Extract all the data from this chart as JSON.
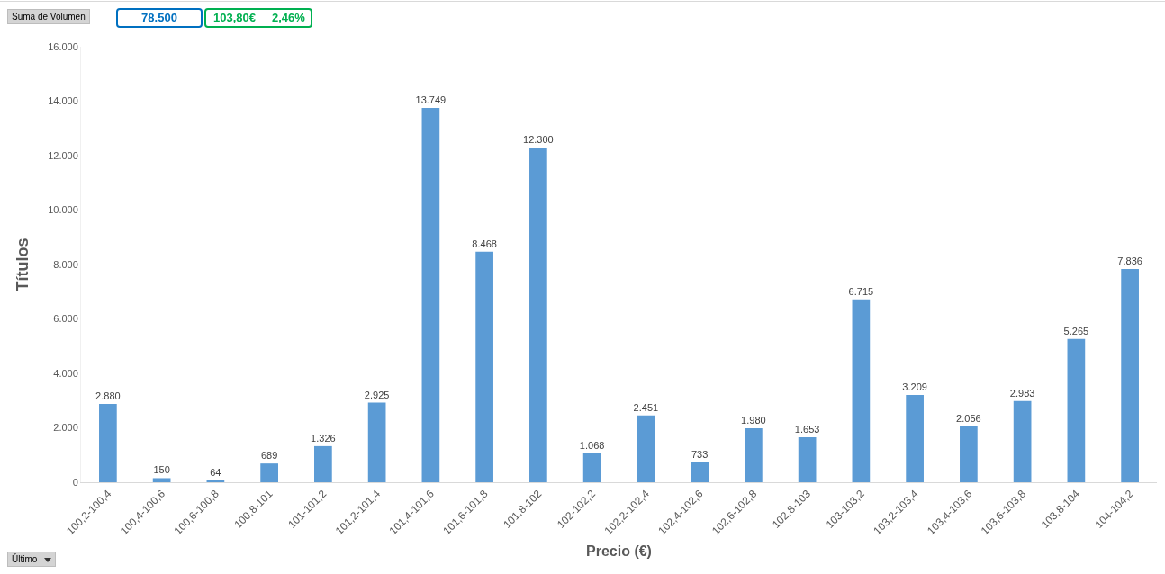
{
  "chart_data": {
    "type": "bar",
    "xlabel": "Precio (€)",
    "ylabel": "Títulos",
    "categories": [
      "100,2-100,4",
      "100,4-100,6",
      "100,6-100,8",
      "100,8-101",
      "101-101,2",
      "101,2-101,4",
      "101,4-101,6",
      "101,6-101,8",
      "101,8-102",
      "102-102,2",
      "102,2-102,4",
      "102,4-102,6",
      "102,6-102,8",
      "102,8-103",
      "103-103,2",
      "103,2-103,4",
      "103,4-103,6",
      "103,6-103,8",
      "103,8-104",
      "104-104,2"
    ],
    "values": [
      2880,
      150,
      64,
      689,
      1326,
      2925,
      13749,
      8468,
      12300,
      1068,
      2451,
      733,
      1980,
      1653,
      6715,
      3209,
      2056,
      2983,
      5265,
      7836
    ],
    "value_labels": [
      "2.880",
      "150",
      "64",
      "689",
      "1.326",
      "2.925",
      "13.749",
      "8.468",
      "12.300",
      "1.068",
      "2.451",
      "733",
      "1.980",
      "1.653",
      "6.715",
      "3.209",
      "2.056",
      "2.983",
      "5.265",
      "7.836"
    ],
    "color": "#5b9bd5",
    "ylim": [
      0,
      16000
    ],
    "yticks": [
      0,
      {
        "value": 2000,
        "label": "2.000"
      },
      {
        "value": 4000,
        "label": "4.000"
      },
      {
        "value": 6000,
        "label": "6.000"
      },
      {
        "value": 8000,
        "label": "8.000"
      },
      {
        "value": 10000,
        "label": "10.000"
      },
      {
        "value": 12000,
        "label": "12.000"
      },
      {
        "value": 14000,
        "label": "14.000"
      },
      {
        "value": 16000,
        "label": "16.000"
      }
    ],
    "grid": false,
    "legend": false,
    "annotations": [
      "Suma de Volumen",
      "78.500",
      "103,80€",
      "2,46%",
      "Último"
    ]
  }
}
